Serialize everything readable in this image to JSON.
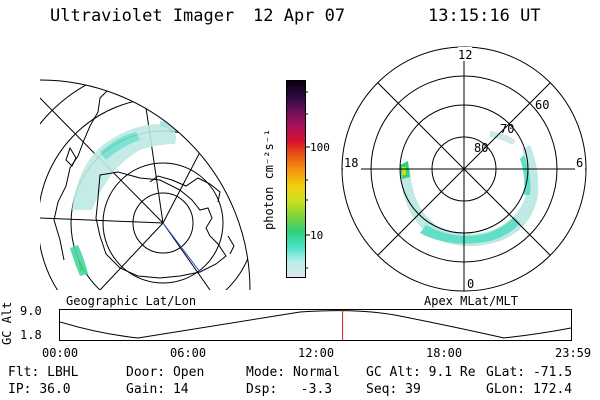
{
  "header": {
    "instrument": "Ultraviolet Imager",
    "date": "12 Apr 07",
    "time": "13:15:16 UT"
  },
  "left_panel": {
    "label": "Geographic Lat/Lon"
  },
  "right_panel": {
    "label": "Apex MLat/MLT",
    "mlt_labels": [
      "12",
      "18",
      "6",
      "0"
    ],
    "lat_labels": [
      "80",
      "70",
      "60"
    ]
  },
  "colorbar": {
    "unit_label": "photon cm⁻²s⁻¹",
    "ticks": [
      "100",
      "10"
    ],
    "colors": [
      "#dfe6ea",
      "#b9efe9",
      "#48e0c8",
      "#30d07a",
      "#7fd23a",
      "#c9e020",
      "#f2d010",
      "#f59a10",
      "#ea5a10",
      "#d8102a",
      "#a8105a",
      "#6a105a",
      "#2a0840",
      "#0a0010"
    ]
  },
  "altitude_plot": {
    "axis_label": "GC Alt",
    "y_ticks": [
      "9.0",
      "1.8"
    ],
    "x_ticks": [
      "00:00",
      "06:00",
      "12:00",
      "18:00",
      "23:59"
    ],
    "marker_color": "#d02020",
    "current_time_fraction": 0.553
  },
  "status": {
    "flt_label": "Flt:",
    "flt_value": "LBHL",
    "ip_label": "IP:",
    "ip_value": "36.0",
    "door_label": "Door:",
    "door_value": "Open",
    "gain_label": "Gain:",
    "gain_value": "14",
    "mode_label": "Mode:",
    "mode_value": "Normal",
    "dsp_label": "Dsp:",
    "dsp_value": "-3.3",
    "gcalt_label": "GC Alt:",
    "gcalt_value": "9.1 Re",
    "seq_label": "Seq:",
    "seq_value": "39",
    "glat_label": "GLat:",
    "glat_value": "-71.5",
    "glon_label": "GLon:",
    "glon_value": "172.4"
  }
}
